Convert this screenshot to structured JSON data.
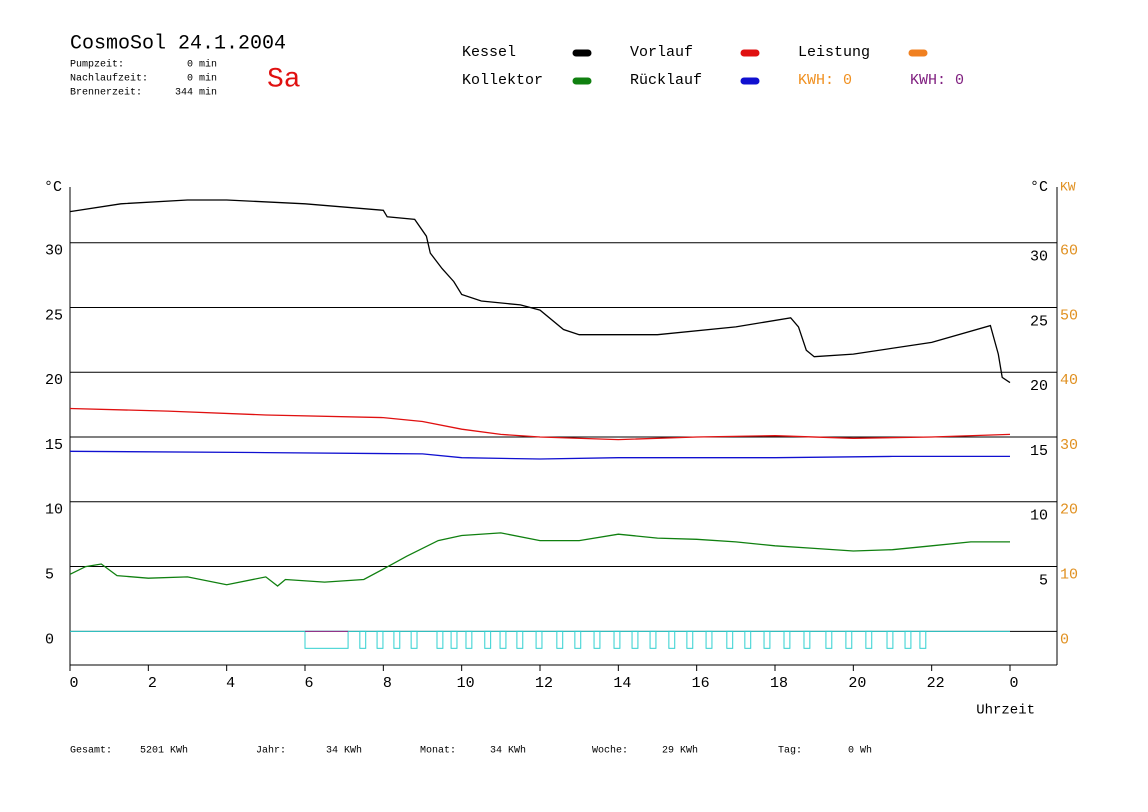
{
  "chart_data": {
    "type": "line",
    "title": "CosmoSol 24.1.2004",
    "info": [
      [
        "Pumpzeit:",
        "0 min"
      ],
      [
        "Nachlaufzeit:",
        "0 min"
      ],
      [
        "Brennerzeit:",
        "344 min"
      ]
    ],
    "day": "Sa",
    "y_label": "°C",
    "y2_label_c": "°C",
    "y2_label": "KW",
    "x_label": "Uhrzeit",
    "kwh": [
      {
        "label": "KWH: 0",
        "color": "#f09020"
      },
      {
        "label": "KWH: 0",
        "color": "#802080"
      }
    ],
    "xlim": [
      0,
      25.2
    ],
    "xticks": [
      0,
      2,
      4,
      6,
      8,
      10,
      12,
      14,
      16,
      18,
      20,
      22,
      {
        "value": 24,
        "label": "0"
      }
    ],
    "ylim": [
      -2.6,
      34.3
    ],
    "yticks": [
      0,
      5,
      10,
      15,
      20,
      25,
      30
    ],
    "yticks_right": [
      5,
      10,
      15,
      20,
      25,
      30
    ],
    "y2lim": [
      -5.2,
      68.6
    ],
    "y2ticks": [
      0,
      10,
      20,
      30,
      40,
      50,
      60
    ],
    "grid": true,
    "series": [
      {
        "name": "Kessel",
        "color": "#000000",
        "x": [
          0,
          1.3,
          3,
          4,
          6,
          8,
          8.1,
          8.8,
          9.1,
          9.2,
          9.5,
          9.8,
          10,
          10.5,
          11.5,
          12,
          12.6,
          13,
          15,
          17,
          18.4,
          18.6,
          18.8,
          19,
          20,
          22,
          23.5,
          23.7,
          23.8,
          24
        ],
        "values": [
          32.4,
          33.0,
          33.3,
          33.3,
          33.0,
          32.5,
          32.0,
          31.8,
          30.5,
          29.2,
          28.0,
          27.0,
          26.0,
          25.5,
          25.2,
          24.8,
          23.3,
          22.9,
          22.9,
          23.5,
          24.2,
          23.5,
          21.7,
          21.2,
          21.4,
          22.3,
          23.6,
          21.4,
          19.6,
          19.2
        ]
      },
      {
        "name": "Kollektor",
        "color": "#108010",
        "x": [
          0,
          0.4,
          0.8,
          1.2,
          2,
          3,
          4,
          5,
          5.3,
          5.5,
          6.5,
          7.5,
          8,
          8.6,
          9.4,
          10,
          11,
          12,
          13,
          14,
          15,
          16,
          17,
          18,
          19,
          20,
          21,
          22,
          23,
          24
        ],
        "values": [
          4.4,
          5.0,
          5.2,
          4.3,
          4.1,
          4.2,
          3.6,
          4.2,
          3.5,
          4.0,
          3.8,
          4.0,
          4.8,
          5.8,
          7.0,
          7.4,
          7.6,
          7.0,
          7.0,
          7.5,
          7.2,
          7.1,
          6.9,
          6.6,
          6.4,
          6.2,
          6.3,
          6.6,
          6.9,
          6.9
        ]
      },
      {
        "name": "Vorlauf",
        "color": "#e01010",
        "x": [
          0,
          2.5,
          5,
          8,
          9,
          10,
          11,
          12,
          14,
          16,
          18,
          20,
          22,
          24
        ],
        "values": [
          17.2,
          17.0,
          16.7,
          16.5,
          16.2,
          15.6,
          15.2,
          15.0,
          14.8,
          15.0,
          15.1,
          14.9,
          15.0,
          15.2
        ]
      },
      {
        "name": "Rücklauf",
        "color": "#1010d0",
        "x": [
          0,
          5,
          9,
          10,
          12,
          14,
          18,
          21,
          24
        ],
        "values": [
          13.9,
          13.8,
          13.7,
          13.4,
          13.3,
          13.4,
          13.4,
          13.5,
          13.5
        ]
      },
      {
        "name": "Leistung",
        "color": "#f08020",
        "x": [],
        "values": []
      }
    ],
    "pulse_color": "#30d0d0",
    "pulses": [
      [
        6.0,
        7.1
      ],
      [
        7.4,
        7.55
      ],
      [
        7.84,
        7.99
      ],
      [
        8.27,
        8.42
      ],
      [
        8.71,
        8.86
      ],
      [
        9.37,
        9.52
      ],
      [
        9.73,
        9.88
      ],
      [
        10.11,
        10.26
      ],
      [
        10.59,
        10.74
      ],
      [
        10.98,
        11.13
      ],
      [
        11.41,
        11.56
      ],
      [
        11.9,
        12.05
      ],
      [
        12.43,
        12.58
      ],
      [
        12.89,
        13.04
      ],
      [
        13.38,
        13.53
      ],
      [
        13.89,
        14.04
      ],
      [
        14.35,
        14.5
      ],
      [
        14.81,
        14.96
      ],
      [
        15.29,
        15.44
      ],
      [
        15.75,
        15.9
      ],
      [
        16.24,
        16.39
      ],
      [
        16.77,
        16.92
      ],
      [
        17.23,
        17.38
      ],
      [
        17.72,
        17.87
      ],
      [
        18.23,
        18.38
      ],
      [
        18.74,
        18.89
      ],
      [
        19.3,
        19.45
      ],
      [
        19.81,
        19.96
      ],
      [
        20.32,
        20.47
      ],
      [
        20.86,
        21.01
      ],
      [
        21.32,
        21.47
      ],
      [
        21.7,
        21.85
      ]
    ],
    "footer": [
      [
        "Gesamt:",
        "5201 KWh"
      ],
      [
        "Jahr:",
        "34 KWh"
      ],
      [
        "Monat:",
        "34 KWh"
      ],
      [
        "Woche:",
        "29 KWh"
      ],
      [
        "Tag:",
        "0 Wh"
      ]
    ]
  }
}
